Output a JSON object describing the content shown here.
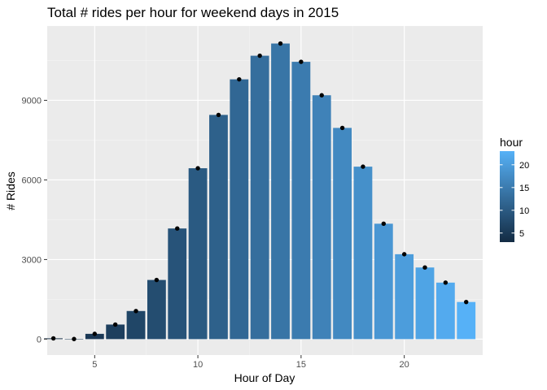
{
  "chart_data": {
    "type": "bar",
    "title": "Total # rides per hour for weekend days in 2015",
    "xlabel": "Hour of Day",
    "ylabel": "# Rides",
    "x": [
      3,
      4,
      5,
      6,
      7,
      8,
      9,
      10,
      11,
      12,
      13,
      14,
      15,
      16,
      17,
      18,
      19,
      20,
      21,
      22,
      23
    ],
    "values": [
      30,
      5,
      200,
      550,
      1060,
      2230,
      4170,
      6440,
      8450,
      9790,
      10680,
      11140,
      10450,
      9190,
      7960,
      6500,
      4350,
      3200,
      2700,
      2130,
      1400
    ],
    "xlim": [
      2.7,
      23.8
    ],
    "ylim": [
      -600,
      11800
    ],
    "xticks": [
      5,
      10,
      15,
      20
    ],
    "xtick_labels": [
      "5",
      "10",
      "15",
      "20"
    ],
    "yticks": [
      0,
      3000,
      6000,
      9000
    ],
    "ytick_labels": [
      "0",
      "3000",
      "6000",
      "9000"
    ],
    "grid": true,
    "points": true,
    "legend": {
      "title": "hour",
      "placement": "right",
      "type": "colorbar",
      "range": [
        3,
        23
      ],
      "ticks": [
        5,
        10,
        15,
        20
      ],
      "tick_labels": [
        "5",
        "10",
        "15",
        "20"
      ],
      "color_low": "#132B43",
      "color_high": "#56B1F7"
    }
  }
}
